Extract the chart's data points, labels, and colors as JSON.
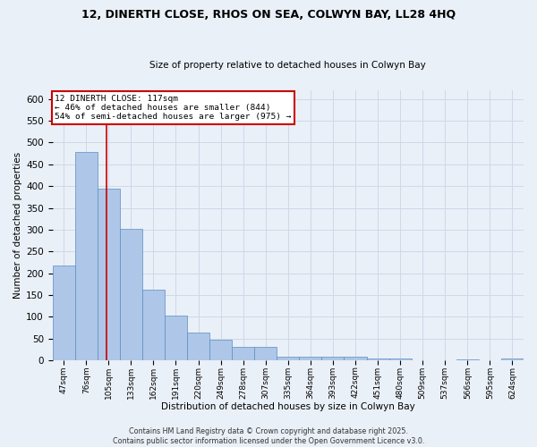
{
  "title_line1": "12, DINERTH CLOSE, RHOS ON SEA, COLWYN BAY, LL28 4HQ",
  "title_line2": "Size of property relative to detached houses in Colwyn Bay",
  "xlabel": "Distribution of detached houses by size in Colwyn Bay",
  "ylabel": "Number of detached properties",
  "categories": [
    "47sqm",
    "76sqm",
    "105sqm",
    "133sqm",
    "162sqm",
    "191sqm",
    "220sqm",
    "249sqm",
    "278sqm",
    "307sqm",
    "335sqm",
    "364sqm",
    "393sqm",
    "422sqm",
    "451sqm",
    "480sqm",
    "509sqm",
    "537sqm",
    "566sqm",
    "595sqm",
    "624sqm"
  ],
  "values": [
    218,
    478,
    395,
    302,
    163,
    104,
    65,
    47,
    31,
    32,
    9,
    9,
    9,
    9,
    5,
    4,
    1,
    0,
    3,
    1,
    4
  ],
  "bar_color": "#aec6e8",
  "bar_edge_color": "#5a8fc0",
  "annotation_text": "12 DINERTH CLOSE: 117sqm\n← 46% of detached houses are smaller (844)\n54% of semi-detached houses are larger (975) →",
  "vline_position": 1.9,
  "annotation_box_color": "#ffffff",
  "annotation_box_edge": "#cc0000",
  "vline_color": "#cc0000",
  "grid_color": "#d0d8e8",
  "background_color": "#eaf0f8",
  "footer_text": "Contains HM Land Registry data © Crown copyright and database right 2025.\nContains public sector information licensed under the Open Government Licence v3.0.",
  "ylim": [
    0,
    620
  ],
  "yticks": [
    0,
    50,
    100,
    150,
    200,
    250,
    300,
    350,
    400,
    450,
    500,
    550,
    600
  ]
}
